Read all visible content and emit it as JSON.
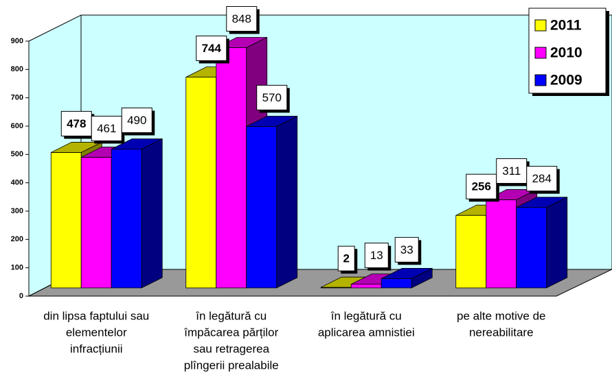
{
  "chart_data": {
    "type": "bar3d",
    "categories": [
      [
        "din lipsa faptului sau",
        "elementelor",
        "infracțiunii"
      ],
      [
        "în legătură cu",
        "împăcarea părților",
        "sau retragerea",
        "plîngerii prealabile"
      ],
      [
        "în legătură cu",
        "aplicarea amnistiei"
      ],
      [
        "pe alte motive de",
        "nereabilitare"
      ]
    ],
    "series": [
      {
        "name": "2011",
        "color": "#ffff00",
        "top": "#b3b300",
        "side": "#808000",
        "values": [
          478,
          744,
          2,
          256
        ]
      },
      {
        "name": "2010",
        "color": "#ff00ff",
        "top": "#b300b3",
        "side": "#800080",
        "values": [
          461,
          848,
          13,
          311
        ]
      },
      {
        "name": "2009",
        "color": "#0000ff",
        "top": "#0000b3",
        "side": "#000080",
        "values": [
          490,
          570,
          33,
          284
        ]
      }
    ],
    "ylim": [
      0,
      900
    ],
    "yticks": [
      0,
      100,
      200,
      300,
      400,
      500,
      600,
      700,
      800,
      900
    ],
    "legend": "top-right"
  }
}
